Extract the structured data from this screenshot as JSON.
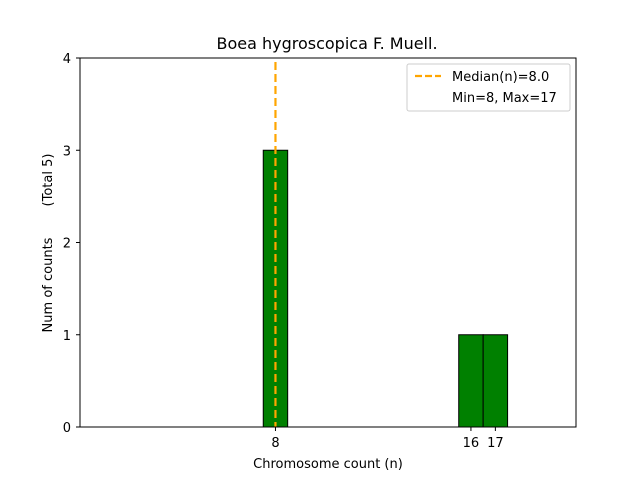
{
  "chart_data": {
    "type": "bar",
    "title": "Boea hygroscopica F. Muell.",
    "xlabel": "Chromosome count (n)",
    "ylabel": "Num of counts",
    "ylabel_secondary": "(Total 5)",
    "xlim": [
      0,
      20.3
    ],
    "ylim": [
      0,
      4
    ],
    "yticks": [
      0,
      1,
      2,
      3,
      4
    ],
    "xticks": [
      8,
      16,
      17
    ],
    "bars": [
      {
        "x": 8,
        "value": 3
      },
      {
        "x": 16,
        "value": 1
      },
      {
        "x": 17,
        "value": 1
      }
    ],
    "bar_width": 1,
    "bar_color": "#008000",
    "median": 8.0,
    "median_color": "#FFA500",
    "legend": {
      "placement": "top-right",
      "entries": [
        "Median(n)=8.0",
        "Min=8, Max=17"
      ]
    },
    "grid": false
  }
}
